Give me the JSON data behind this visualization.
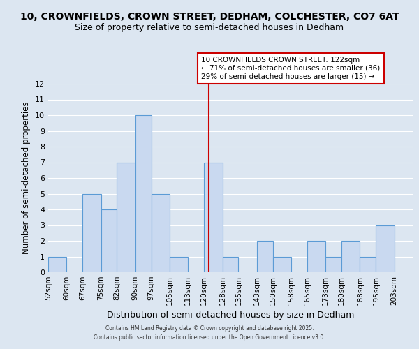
{
  "title": "10, CROWNFIELDS, CROWN STREET, DEDHAM, COLCHESTER, CO7 6AT",
  "subtitle": "Size of property relative to semi-detached houses in Dedham",
  "xlabel": "Distribution of semi-detached houses by size in Dedham",
  "ylabel": "Number of semi-detached properties",
  "bar_left_edges": [
    52,
    60,
    67,
    75,
    82,
    90,
    97,
    105,
    113,
    120,
    128,
    135,
    143,
    150,
    158,
    165,
    173,
    180,
    188,
    195
  ],
  "bar_widths": [
    8,
    7,
    8,
    8,
    8,
    7,
    8,
    8,
    7,
    8,
    7,
    8,
    7,
    8,
    7,
    8,
    7,
    8,
    7,
    8
  ],
  "bar_heights": [
    1,
    0,
    5,
    4,
    7,
    10,
    5,
    1,
    0,
    7,
    1,
    0,
    2,
    1,
    0,
    2,
    1,
    2,
    1,
    3
  ],
  "bar_color": "#c9d9f0",
  "bar_edgecolor": "#5b9bd5",
  "ylim": [
    0,
    12
  ],
  "yticks": [
    0,
    1,
    2,
    3,
    4,
    5,
    6,
    7,
    8,
    9,
    10,
    11,
    12
  ],
  "xtick_labels": [
    "52sqm",
    "60sqm",
    "67sqm",
    "75sqm",
    "82sqm",
    "90sqm",
    "97sqm",
    "105sqm",
    "113sqm",
    "120sqm",
    "128sqm",
    "135sqm",
    "143sqm",
    "150sqm",
    "158sqm",
    "165sqm",
    "173sqm",
    "180sqm",
    "188sqm",
    "195sqm",
    "203sqm"
  ],
  "xtick_positions": [
    52,
    60,
    67,
    75,
    82,
    90,
    97,
    105,
    113,
    120,
    128,
    135,
    143,
    150,
    158,
    165,
    173,
    180,
    188,
    195,
    203
  ],
  "vline_x": 122,
  "vline_color": "#cc0000",
  "annotation_line1": "10 CROWNFIELDS CROWN STREET: 122sqm",
  "annotation_line2": "← 71% of semi-detached houses are smaller (36)",
  "annotation_line3": "29% of semi-detached houses are larger (15) →",
  "grid_color": "#ffffff",
  "bg_color": "#dce6f1",
  "footer1": "Contains HM Land Registry data © Crown copyright and database right 2025.",
  "footer2": "Contains public sector information licensed under the Open Government Licence v3.0.",
  "title_fontsize": 10,
  "subtitle_fontsize": 9
}
